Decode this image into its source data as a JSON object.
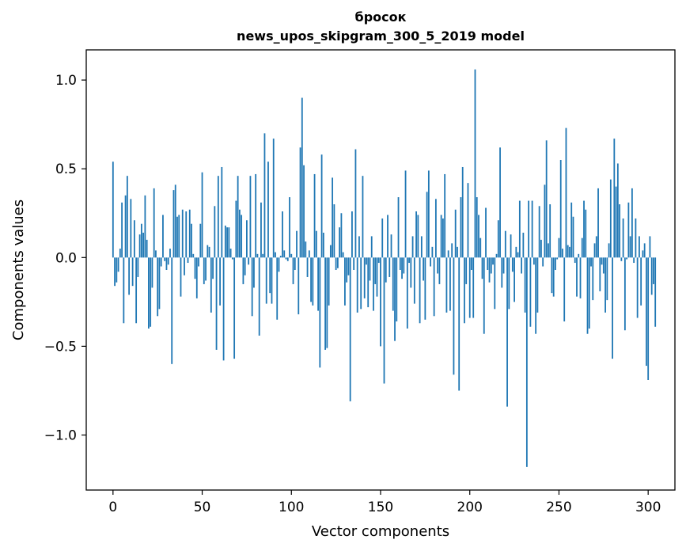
{
  "chart_data": {
    "type": "bar",
    "title_line1": "бросок",
    "title_line2": "news_upos_skipgram_300_5_2019 model",
    "xlabel": "Vector components",
    "ylabel": "Components values",
    "xlim": [
      -15,
      315
    ],
    "ylim": [
      -1.31,
      1.17
    ],
    "xticks": [
      0,
      50,
      100,
      150,
      200,
      250,
      300
    ],
    "xtick_labels": [
      "0",
      "50",
      "100",
      "150",
      "200",
      "250",
      "300"
    ],
    "yticks": [
      -1.0,
      -0.5,
      0.0,
      0.5,
      1.0
    ],
    "ytick_labels": [
      "−1.0",
      "−0.5",
      "0.0",
      "0.5",
      "1.0"
    ],
    "color": "#1f77b4",
    "values": [
      0.54,
      -0.16,
      -0.14,
      -0.08,
      0.05,
      0.31,
      -0.37,
      0.35,
      0.46,
      -0.21,
      0.33,
      -0.16,
      0.21,
      -0.37,
      -0.11,
      0.13,
      0.19,
      0.14,
      0.35,
      0.1,
      -0.4,
      -0.39,
      -0.17,
      0.39,
      0.04,
      -0.33,
      -0.29,
      -0.05,
      0.24,
      -0.02,
      -0.07,
      -0.04,
      0.05,
      -0.6,
      0.38,
      0.41,
      0.23,
      0.24,
      -0.22,
      0.27,
      -0.1,
      0.26,
      -0.03,
      0.27,
      0.19,
      0.02,
      -0.12,
      -0.23,
      -0.05,
      0.19,
      0.48,
      -0.15,
      -0.13,
      0.07,
      0.06,
      -0.31,
      -0.12,
      0.29,
      -0.52,
      0.46,
      -0.27,
      0.51,
      -0.58,
      0.18,
      0.17,
      0.17,
      0.05,
      -0.01,
      -0.57,
      0.32,
      0.46,
      0.27,
      0.24,
      -0.15,
      -0.1,
      0.21,
      -0.04,
      0.46,
      -0.33,
      -0.17,
      0.47,
      0.02,
      -0.44,
      0.31,
      0.02,
      0.7,
      -0.26,
      0.54,
      -0.2,
      -0.26,
      0.67,
      0.03,
      -0.35,
      -0.08,
      0.01,
      0.26,
      0.04,
      -0.01,
      -0.02,
      0.34,
      0.02,
      -0.15,
      -0.07,
      0.15,
      -0.32,
      0.62,
      0.9,
      0.52,
      0.09,
      -0.11,
      0.04,
      -0.25,
      -0.27,
      0.47,
      0.15,
      -0.3,
      -0.62,
      0.58,
      0.14,
      -0.52,
      -0.51,
      -0.27,
      0.07,
      0.45,
      0.3,
      -0.07,
      -0.06,
      0.17,
      0.25,
      0.03,
      -0.27,
      -0.14,
      -0.1,
      -0.81,
      0.26,
      -0.07,
      0.61,
      -0.31,
      0.12,
      -0.29,
      0.46,
      -0.23,
      -0.04,
      -0.28,
      -0.13,
      0.12,
      -0.3,
      -0.15,
      -0.22,
      -0.03,
      -0.5,
      0.22,
      -0.71,
      -0.14,
      0.24,
      -0.11,
      0.13,
      -0.3,
      -0.47,
      -0.36,
      0.34,
      -0.07,
      -0.12,
      -0.09,
      0.49,
      -0.4,
      -0.03,
      -0.17,
      0.12,
      -0.26,
      0.26,
      0.24,
      -0.37,
      0.12,
      -0.13,
      -0.35,
      0.37,
      0.49,
      -0.05,
      0.06,
      -0.33,
      0.33,
      -0.09,
      -0.15,
      0.24,
      0.22,
      0.47,
      -0.31,
      0.04,
      -0.3,
      0.08,
      -0.66,
      0.27,
      0.06,
      -0.75,
      0.34,
      0.51,
      -0.37,
      -0.15,
      0.42,
      -0.34,
      -0.07,
      -0.34,
      1.06,
      0.34,
      0.24,
      0.11,
      -0.12,
      -0.43,
      0.28,
      -0.07,
      -0.14,
      -0.09,
      -0.04,
      -0.29,
      0.02,
      0.21,
      0.62,
      -0.17,
      -0.09,
      0.15,
      -0.84,
      -0.29,
      0.13,
      -0.08,
      -0.25,
      0.06,
      0.03,
      0.32,
      -0.09,
      0.14,
      -0.31,
      -1.18,
      0.32,
      -0.39,
      0.32,
      -0.04,
      -0.43,
      -0.31,
      0.29,
      0.1,
      -0.05,
      0.41,
      0.66,
      0.08,
      0.3,
      -0.2,
      -0.22,
      -0.07,
      -0.01,
      0.11,
      0.55,
      0.05,
      -0.36,
      0.73,
      0.07,
      0.06,
      0.31,
      0.23,
      -0.03,
      -0.22,
      0.02,
      -0.23,
      0.11,
      0.32,
      0.27,
      -0.43,
      -0.4,
      -0.05,
      -0.24,
      0.08,
      0.12,
      0.39,
      -0.19,
      -0.04,
      -0.09,
      -0.31,
      -0.24,
      0.08,
      0.44,
      -0.57,
      0.67,
      0.4,
      0.53,
      0.3,
      -0.02,
      0.22,
      -0.41,
      -0.01,
      0.31,
      0.12,
      0.39,
      -0.03,
      0.22,
      -0.34,
      0.12,
      -0.27,
      0.04,
      0.08,
      -0.61,
      -0.69,
      0.12,
      -0.21,
      -0.15,
      -0.39
    ]
  }
}
